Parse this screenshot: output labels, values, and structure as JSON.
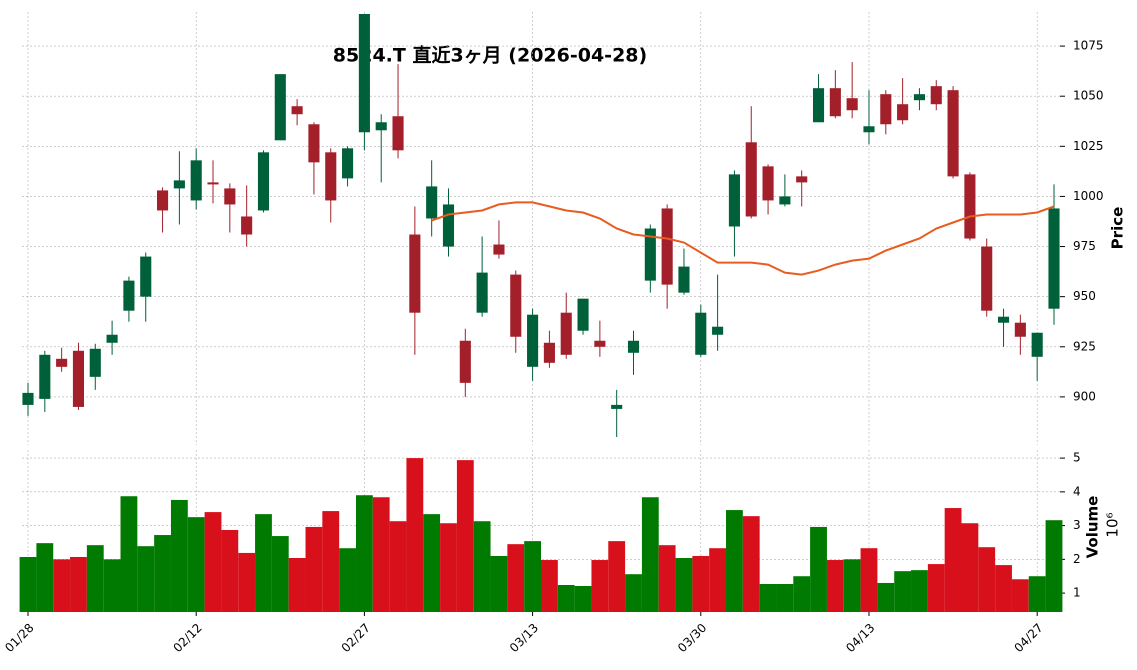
{
  "chart_data": {
    "type": "candlestick",
    "title": "8524.T  直近3ヶ月  (2026-04-28)",
    "categories": [
      "01/28",
      null,
      null,
      null,
      null,
      null,
      null,
      null,
      null,
      null,
      "02/12",
      null,
      null,
      null,
      null,
      null,
      null,
      null,
      null,
      null,
      "02/27",
      null,
      null,
      null,
      null,
      null,
      null,
      null,
      null,
      null,
      "03/13",
      null,
      null,
      null,
      null,
      null,
      null,
      null,
      null,
      null,
      "03/30",
      null,
      null,
      null,
      null,
      null,
      null,
      null,
      null,
      null,
      "04/13",
      null,
      null,
      null,
      null,
      null,
      null,
      null,
      null,
      null,
      "04/27",
      null
    ],
    "open": [
      896,
      899,
      919,
      923,
      910,
      927,
      943,
      950,
      1003,
      1004,
      998,
      1007,
      1004,
      990,
      993,
      1028,
      1045,
      1036,
      1022,
      1009,
      1032,
      1033,
      1040,
      981,
      989,
      975,
      928,
      942,
      976,
      961,
      915,
      927,
      942,
      933,
      928,
      894,
      922,
      958,
      994,
      952,
      921,
      931,
      985,
      1027,
      1015,
      996,
      1010,
      1037,
      1054,
      1049,
      1032,
      1051,
      1046,
      1048,
      1055,
      1053,
      1011,
      975,
      937,
      937,
      920,
      944
    ],
    "high": [
      907,
      923,
      924.5,
      927,
      926.5,
      938,
      960,
      972,
      1004.5,
      1022.5,
      1024,
      1018,
      1006.5,
      1005.5,
      1023,
      1061,
      1048.5,
      1037,
      1024,
      1025,
      1091,
      1041,
      1066,
      995,
      1018,
      1004,
      934,
      980,
      988,
      963,
      944,
      933,
      952,
      949,
      938,
      903.5,
      933,
      986,
      996,
      974,
      946,
      961,
      1013,
      1045,
      1016,
      1011,
      1013,
      1061,
      1063,
      1067,
      1053,
      1053,
      1059,
      1054,
      1058,
      1055,
      1012,
      979,
      944,
      941,
      932,
      1006
    ],
    "low": [
      890.5,
      892.5,
      912.5,
      893.5,
      903.5,
      921,
      937.5,
      937.5,
      982,
      986,
      993.5,
      996.5,
      982,
      975,
      992,
      1028,
      1035.5,
      1001,
      987,
      1005,
      1023,
      1007,
      1019,
      921,
      980,
      970,
      900,
      940,
      969,
      922,
      908,
      914.5,
      919,
      931,
      920,
      880,
      911,
      952,
      944,
      951,
      920,
      923,
      970,
      989,
      991,
      995,
      995,
      1037,
      1039,
      1039,
      1026,
      1031,
      1036,
      1043,
      1043,
      1009,
      978,
      940,
      925,
      921,
      908,
      936
    ],
    "close": [
      902,
      921,
      915,
      895,
      924,
      931,
      958,
      970,
      993,
      1008,
      1018,
      1006,
      996,
      981,
      1022,
      1061,
      1041,
      1017,
      998,
      1024,
      1091,
      1037,
      1023,
      942,
      1005,
      996,
      907,
      962,
      971,
      930,
      941,
      917,
      921,
      949,
      925,
      896,
      928,
      984,
      956,
      965,
      942,
      935,
      1011,
      990,
      998,
      1000,
      1007,
      1054,
      1040,
      1043,
      1035,
      1036,
      1038,
      1051,
      1046,
      1010,
      979,
      943,
      940,
      930,
      932,
      994
    ],
    "up_color": "#00603a",
    "down_color": "#a31f2a",
    "ma": {
      "color": "#e85c1f",
      "values": [
        null,
        null,
        null,
        null,
        null,
        null,
        null,
        null,
        null,
        null,
        null,
        null,
        null,
        null,
        null,
        null,
        null,
        null,
        null,
        null,
        null,
        null,
        null,
        null,
        988,
        991,
        992,
        993,
        996,
        997,
        997,
        995,
        993,
        992,
        989,
        984,
        981,
        980,
        979,
        977,
        972,
        967,
        967,
        967,
        966,
        962,
        961,
        963,
        966,
        968,
        969,
        973,
        976,
        979,
        984,
        987,
        990,
        991,
        991,
        991,
        992,
        995
      ]
    },
    "ylabel": "Price",
    "ylim": [
      876,
      1092
    ],
    "yticks": [
      900,
      925,
      950,
      975,
      1000,
      1025,
      1050,
      1075
    ],
    "grid": true,
    "volume": {
      "values": [
        2.07,
        2.48,
        2.0,
        2.07,
        2.42,
        2.0,
        3.87,
        2.39,
        2.72,
        3.76,
        3.25,
        3.4,
        2.87,
        2.19,
        3.34,
        2.69,
        2.04,
        2.96,
        3.43,
        2.33,
        3.9,
        3.84,
        3.13,
        5.0,
        3.34,
        3.07,
        4.94,
        3.13,
        2.1,
        2.45,
        2.54,
        1.98,
        1.24,
        1.21,
        1.98,
        2.54,
        1.56,
        3.84,
        2.42,
        2.04,
        2.1,
        2.33,
        3.46,
        3.28,
        1.27,
        1.27,
        1.5,
        2.96,
        1.98,
        2.0,
        2.33,
        1.3,
        1.65,
        1.68,
        1.86,
        3.52,
        3.07,
        2.36,
        1.83,
        1.41,
        1.5,
        3.16
      ],
      "up_color": "#007a00",
      "down_color": "#d7101c",
      "ylabel": "Volume",
      "scale_label": "10⁶",
      "ylim": [
        0.44,
        5.24
      ],
      "yticks": [
        1,
        2,
        3,
        4,
        5
      ]
    }
  }
}
